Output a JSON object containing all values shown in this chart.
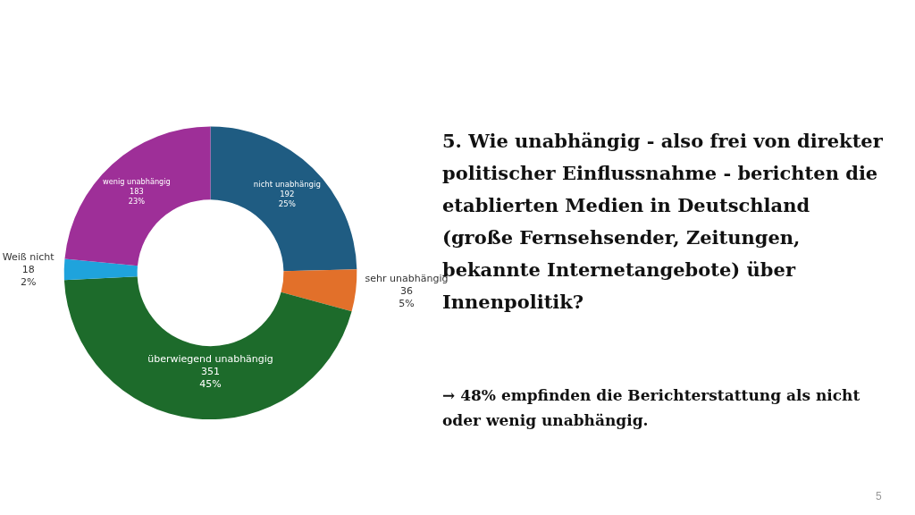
{
  "chart_data": {
    "type": "donut",
    "title": "5. Wie unabhängig - also frei von direkter politischer Einflussnahme - berichten die etablierten Medien in Deutschland (große Fernsehsender, Zeitungen, bekannte Internetangebote) über Innenpolitik?",
    "categories": [
      "nicht unabhängig",
      "sehr unabhängig",
      "überwiegend unabhängig",
      "Weiß nicht",
      "wenig unabhängig"
    ],
    "values": [
      192,
      36,
      351,
      18,
      183
    ],
    "value_labels": [
      "192\n25%",
      "36\n5%",
      "351\n45%",
      "18\n2%",
      "183\n23%"
    ],
    "colors": [
      "#1f5c82",
      "#e2702a",
      "#1d6b2b",
      "#1fa3dc",
      "#9e2f98"
    ],
    "legend": false,
    "annotations": [
      "→ 48% empfinden die Berichterstattung als nicht oder wenig unabhängig.",
      "5"
    ]
  }
}
